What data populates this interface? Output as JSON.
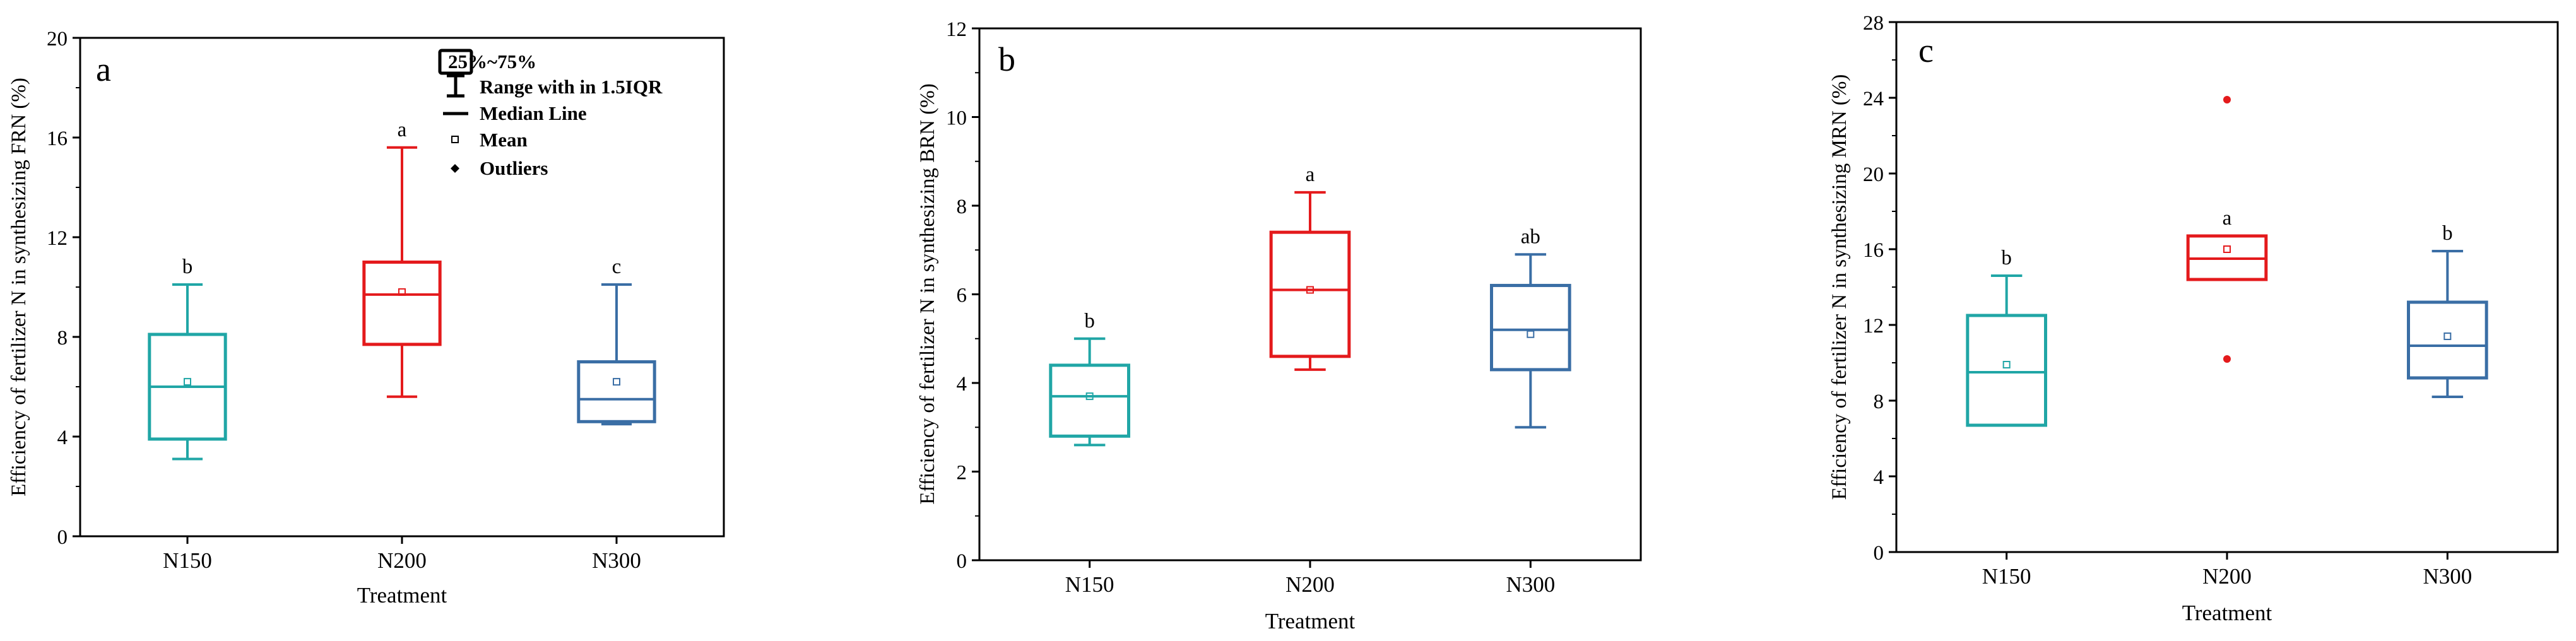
{
  "colors": {
    "N150": "#20A6A6",
    "N200": "#E41A1C",
    "N300": "#3A6EA5",
    "axis": "#000000"
  },
  "legend": {
    "box": "25%~75%",
    "whisker": "Range with in 1.5IQR",
    "median": "Median Line",
    "mean": "Mean",
    "outliers": "Outliers"
  },
  "chart_data": [
    {
      "type": "box",
      "panel_label": "a",
      "ylabel": "Efficiency of fertilizer N in synthesizing FRN (%)",
      "xlabel": "Treatment",
      "ylim": [
        0,
        20
      ],
      "yticks": [
        "0",
        "4",
        "8",
        "12",
        "16",
        "20"
      ],
      "categories": [
        "N150",
        "N200",
        "N300"
      ],
      "boxes": [
        {
          "name": "N150",
          "min": 3.1,
          "q1": 3.9,
          "median": 6.0,
          "q3": 8.1,
          "max": 10.1,
          "mean": 6.2,
          "letter": "b",
          "outliers": []
        },
        {
          "name": "N200",
          "min": 5.6,
          "q1": 7.7,
          "median": 9.7,
          "q3": 11.0,
          "max": 15.6,
          "mean": 9.8,
          "letter": "a",
          "outliers": []
        },
        {
          "name": "N300",
          "min": 4.5,
          "q1": 4.6,
          "median": 5.5,
          "q3": 7.0,
          "max": 10.1,
          "mean": 6.2,
          "letter": "c",
          "outliers": []
        }
      ]
    },
    {
      "type": "box",
      "panel_label": "b",
      "ylabel": "Efficiency of fertilizer N in synthesizing BRN (%)",
      "xlabel": "Treatment",
      "ylim": [
        0,
        12
      ],
      "yticks": [
        "0",
        "2",
        "4",
        "6",
        "8",
        "10",
        "12"
      ],
      "categories": [
        "N150",
        "N200",
        "N300"
      ],
      "boxes": [
        {
          "name": "N150",
          "min": 2.6,
          "q1": 2.8,
          "median": 3.7,
          "q3": 4.4,
          "max": 5.0,
          "mean": 3.7,
          "letter": "b",
          "outliers": []
        },
        {
          "name": "N200",
          "min": 4.3,
          "q1": 4.6,
          "median": 6.1,
          "q3": 7.4,
          "max": 8.3,
          "mean": 6.1,
          "letter": "a",
          "outliers": []
        },
        {
          "name": "N300",
          "min": 3.0,
          "q1": 4.3,
          "median": 5.2,
          "q3": 6.2,
          "max": 6.9,
          "mean": 5.1,
          "letter": "ab",
          "outliers": []
        }
      ]
    },
    {
      "type": "box",
      "panel_label": "c",
      "ylabel": "Efficiency of fertilizer N in synthesizing MRN (%)",
      "xlabel": "Treatment",
      "ylim": [
        0,
        28
      ],
      "yticks": [
        "0",
        "4",
        "8",
        "12",
        "16",
        "20",
        "24",
        "28"
      ],
      "categories": [
        "N150",
        "N200",
        "N300"
      ],
      "boxes": [
        {
          "name": "N150",
          "min": 6.7,
          "q1": 6.7,
          "median": 9.5,
          "q3": 12.5,
          "max": 14.6,
          "mean": 9.9,
          "letter": "b",
          "outliers": []
        },
        {
          "name": "N200",
          "min": 14.4,
          "q1": 14.4,
          "median": 15.5,
          "q3": 16.7,
          "max": 16.7,
          "mean": 16.0,
          "letter": "a",
          "outliers": [
            10.2,
            23.9
          ]
        },
        {
          "name": "N300",
          "min": 8.2,
          "q1": 9.2,
          "median": 10.9,
          "q3": 13.2,
          "max": 15.9,
          "mean": 11.4,
          "letter": "b",
          "outliers": []
        }
      ]
    }
  ]
}
